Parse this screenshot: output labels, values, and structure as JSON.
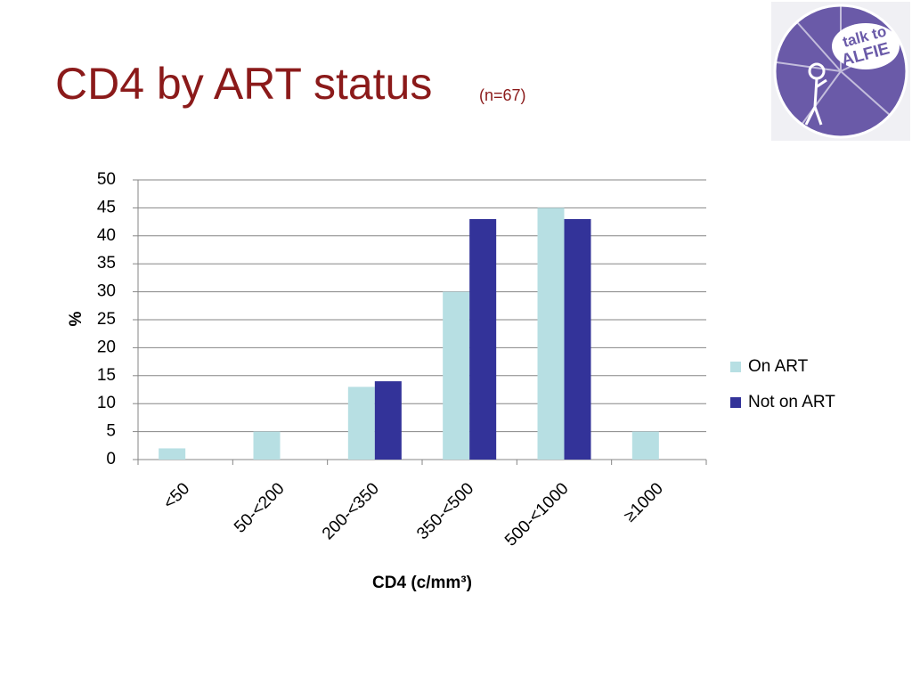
{
  "chart_data": {
    "type": "bar",
    "title": "CD4 by ART status",
    "subtitle": "(n=67)",
    "y_label": "%",
    "x_label": "CD4 (c/mm³)",
    "categories": [
      "<50",
      "50-<200",
      "200-<350",
      "350-<500",
      "500-<1000",
      "≥1000"
    ],
    "series": [
      {
        "name": "On ART",
        "color": "#b7dfe3",
        "values": [
          2,
          5,
          13,
          30,
          45,
          5
        ]
      },
      {
        "name": "Not on ART",
        "color": "#333399",
        "values": [
          0,
          0,
          14,
          43,
          43,
          0
        ]
      }
    ],
    "ylim": [
      0,
      50
    ],
    "yticks": [
      0,
      5,
      10,
      15,
      20,
      25,
      30,
      35,
      40,
      45,
      50
    ],
    "grid": true,
    "legend": "right"
  },
  "logo": {
    "line1": "talk to",
    "line2": "ALFIE"
  }
}
